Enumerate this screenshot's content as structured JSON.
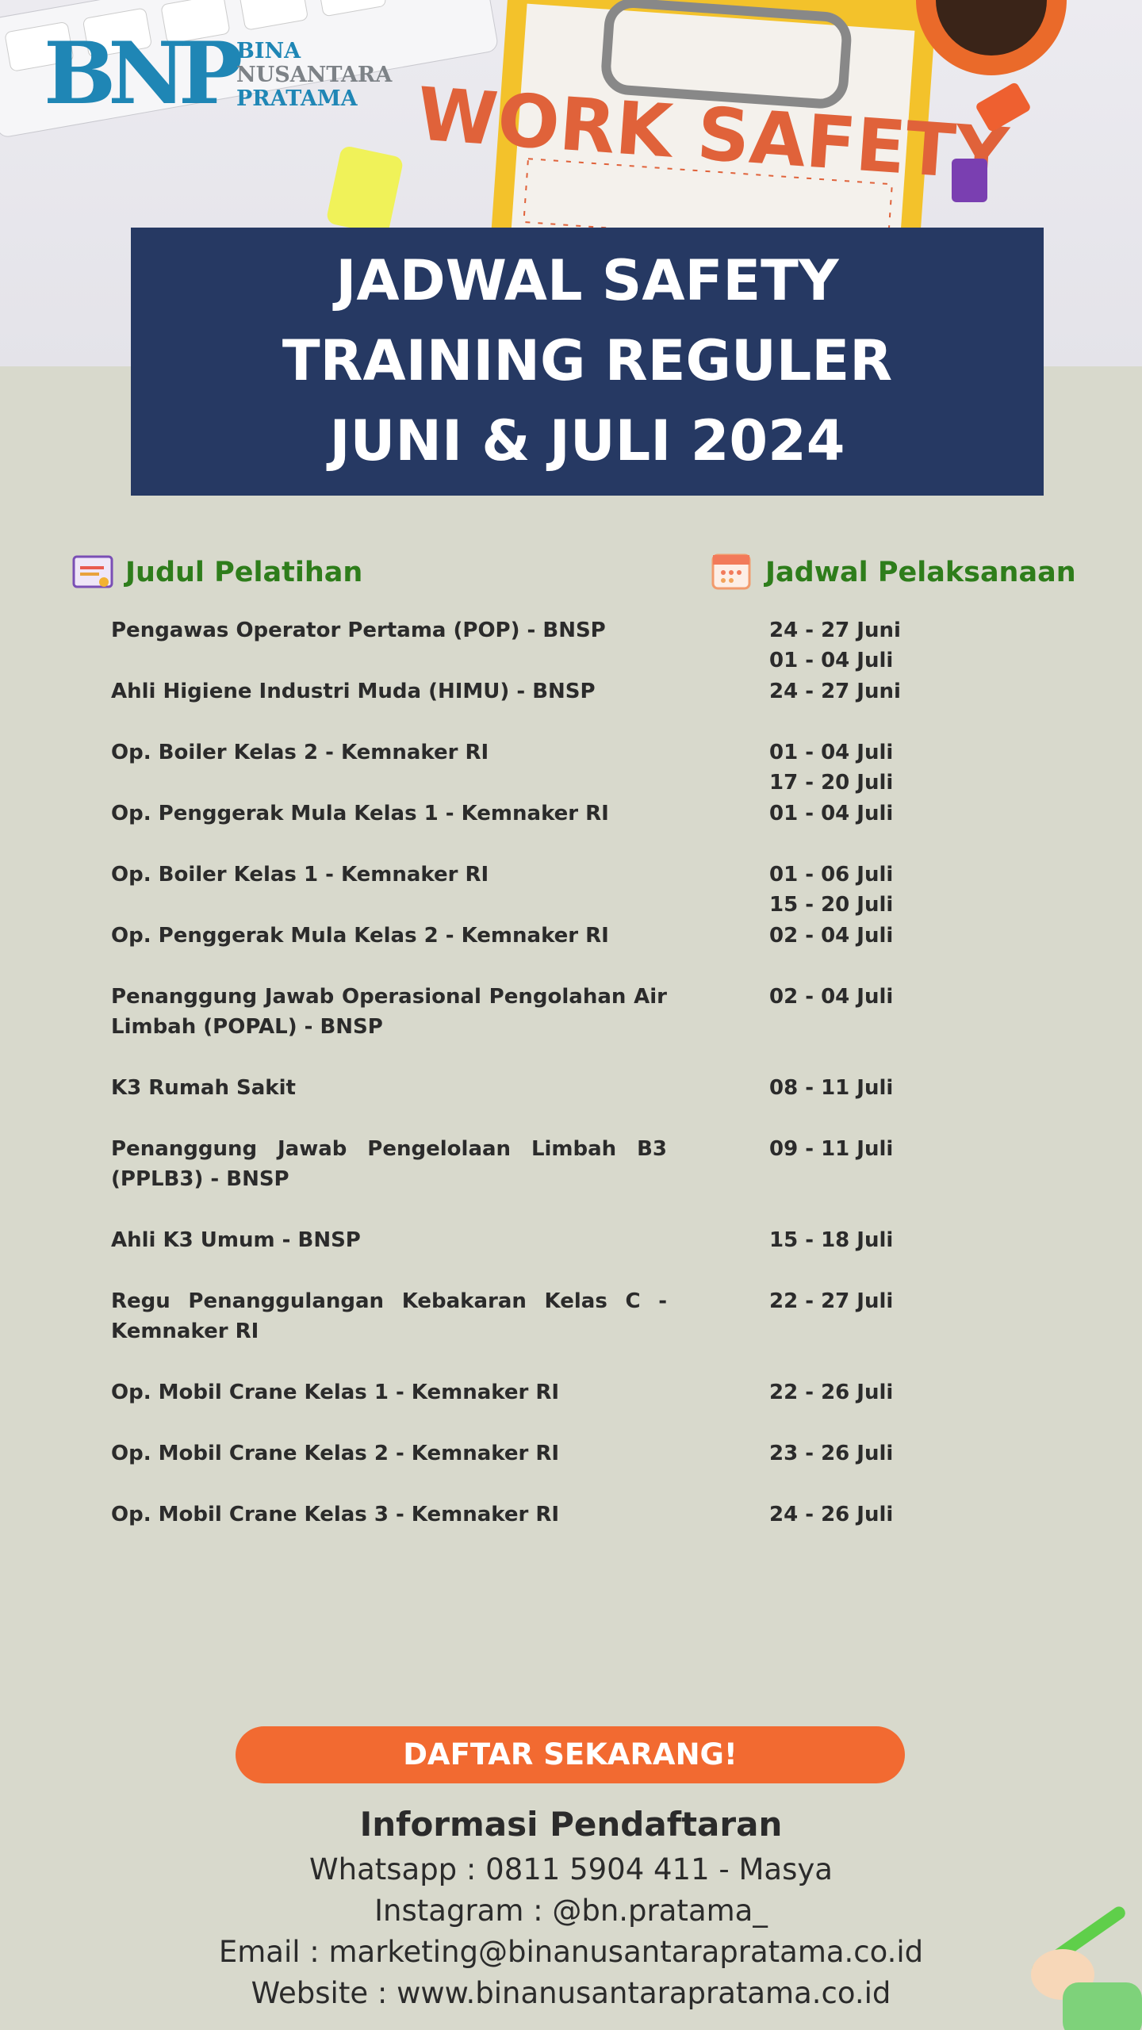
{
  "logo": {
    "mark": "BNP",
    "lines": [
      "BINA",
      "NUSANTARA",
      "PRATAMA"
    ]
  },
  "photo": {
    "clipboard_text": "WORK SAFETY"
  },
  "title": [
    "JADWAL SAFETY",
    "TRAINING REGULER",
    "JUNI & JULI 2024"
  ],
  "table": {
    "headers": [
      "Judul Pelatihan",
      "Jadwal Pelaksanaan"
    ],
    "rows": [
      {
        "course": "Pengawas Operator Pertama (POP) - BNSP",
        "dates": [
          "24 - 27 Juni",
          "01 - 04 Juli"
        ]
      },
      {
        "course": "Ahli Higiene Industri Muda (HIMU) - BNSP",
        "dates": [
          "24 - 27 Juni"
        ]
      },
      {
        "course": "Op. Boiler Kelas 2 - Kemnaker RI",
        "dates": [
          "01 - 04 Juli",
          "17 - 20 Juli"
        ]
      },
      {
        "course": "Op. Penggerak Mula Kelas 1 - Kemnaker RI",
        "dates": [
          "01 - 04 Juli"
        ]
      },
      {
        "course": "Op. Boiler Kelas 1 - Kemnaker RI",
        "dates": [
          "01 - 06 Juli",
          "15 - 20 Juli"
        ]
      },
      {
        "course": "Op. Penggerak Mula Kelas 2 - Kemnaker RI",
        "dates": [
          "02 - 04 Juli"
        ]
      },
      {
        "course": "Penanggung Jawab Operasional Pengolahan Air Limbah (POPAL) - BNSP",
        "dates": [
          "02 - 04 Juli"
        ]
      },
      {
        "course": "K3 Rumah Sakit",
        "dates": [
          "08 - 11 Juli"
        ]
      },
      {
        "course": "Penanggung Jawab Pengelolaan Limbah B3 (PPLB3) - BNSP",
        "dates": [
          "09 - 11 Juli"
        ]
      },
      {
        "course": "Ahli K3 Umum - BNSP",
        "dates": [
          "15 - 18 Juli"
        ]
      },
      {
        "course": "Regu Penanggulangan Kebakaran Kelas C - Kemnaker RI",
        "dates": [
          "22 - 27 Juli"
        ]
      },
      {
        "course": "Op. Mobil Crane Kelas 1 - Kemnaker RI",
        "dates": [
          "22 - 26 Juli"
        ]
      },
      {
        "course": "Op. Mobil Crane Kelas 2 - Kemnaker RI",
        "dates": [
          "23 - 26 Juli"
        ]
      },
      {
        "course": "Op. Mobil Crane Kelas 3 - Kemnaker RI",
        "dates": [
          "24 - 26 Juli"
        ]
      }
    ]
  },
  "cta": "DAFTAR SEKARANG!",
  "info": {
    "title": "Informasi Pendaftaran",
    "lines": [
      "Whatsapp : 0811 5904 411 - Masya",
      "Instagram : @bn.pratama_",
      "Email : marketing@binanusantarapratama.co.id",
      "Website : www.binanusantarapratama.co.id"
    ]
  }
}
